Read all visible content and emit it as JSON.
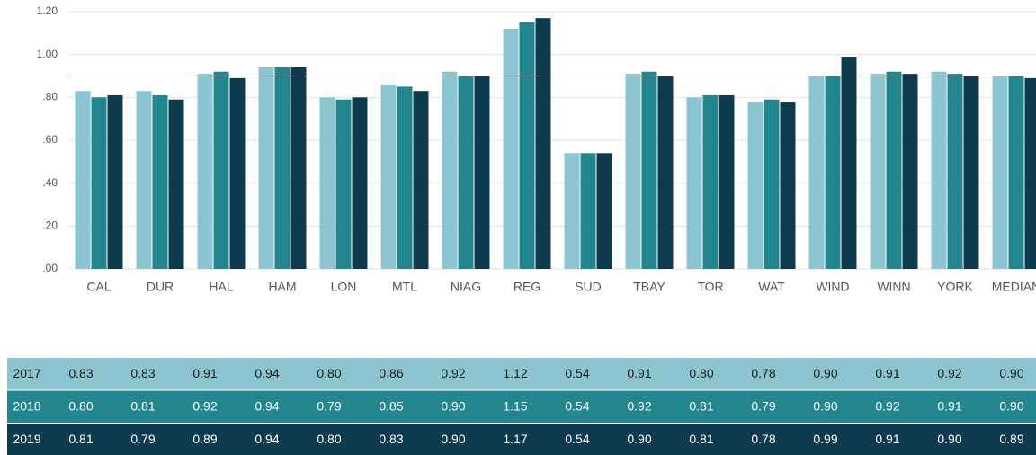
{
  "chart_data": {
    "type": "bar",
    "categories": [
      "CAL",
      "DUR",
      "HAL",
      "HAM",
      "LON",
      "MTL",
      "NIAG",
      "REG",
      "SUD",
      "TBAY",
      "TOR",
      "WAT",
      "WIND",
      "WINN",
      "YORK",
      "MEDIAN"
    ],
    "series": [
      {
        "name": "2017",
        "color": "#8cc5d0",
        "values": [
          0.83,
          0.83,
          0.91,
          0.94,
          0.8,
          0.86,
          0.92,
          1.12,
          0.54,
          0.91,
          0.8,
          0.78,
          0.9,
          0.91,
          0.92,
          0.9
        ],
        "value_labels": [
          "0.83",
          "0.83",
          "0.91",
          "0.94",
          "0.80",
          "0.86",
          "0.92",
          "1.12",
          "0.54",
          "0.91",
          "0.80",
          "0.78",
          "0.90",
          "0.91",
          "0.92",
          "0.90"
        ]
      },
      {
        "name": "2018",
        "color": "#23868f",
        "values": [
          0.8,
          0.81,
          0.92,
          0.94,
          0.79,
          0.85,
          0.9,
          1.15,
          0.54,
          0.92,
          0.81,
          0.79,
          0.9,
          0.92,
          0.91,
          0.9
        ],
        "value_labels": [
          "0.80",
          "0.81",
          "0.92",
          "0.94",
          "0.79",
          "0.85",
          "0.90",
          "1.15",
          "0.54",
          "0.92",
          "0.81",
          "0.79",
          "0.90",
          "0.92",
          "0.91",
          "0.90"
        ]
      },
      {
        "name": "2019",
        "color": "#0e3a4e",
        "values": [
          0.81,
          0.79,
          0.89,
          0.94,
          0.8,
          0.83,
          0.9,
          1.17,
          0.54,
          0.9,
          0.81,
          0.78,
          0.99,
          0.91,
          0.9,
          0.89
        ],
        "value_labels": [
          "0.81",
          "0.79",
          "0.89",
          "0.94",
          "0.80",
          "0.83",
          "0.90",
          "1.17",
          "0.54",
          "0.90",
          "0.81",
          "0.78",
          "0.99",
          "0.91",
          "0.90",
          "0.89"
        ]
      }
    ],
    "ylim": [
      0,
      1.2
    ],
    "yticks": [
      {
        "value": 0,
        "label": ".00"
      },
      {
        "value": 0.2,
        "label": ".20"
      },
      {
        "value": 0.4,
        "label": ".40"
      },
      {
        "value": 0.6,
        "label": ".60"
      },
      {
        "value": 0.8,
        "label": ".80"
      },
      {
        "value": 1.0,
        "label": "1.00"
      },
      {
        "value": 1.2,
        "label": "1.20"
      }
    ],
    "reference_line": 0.9,
    "grid": true
  }
}
